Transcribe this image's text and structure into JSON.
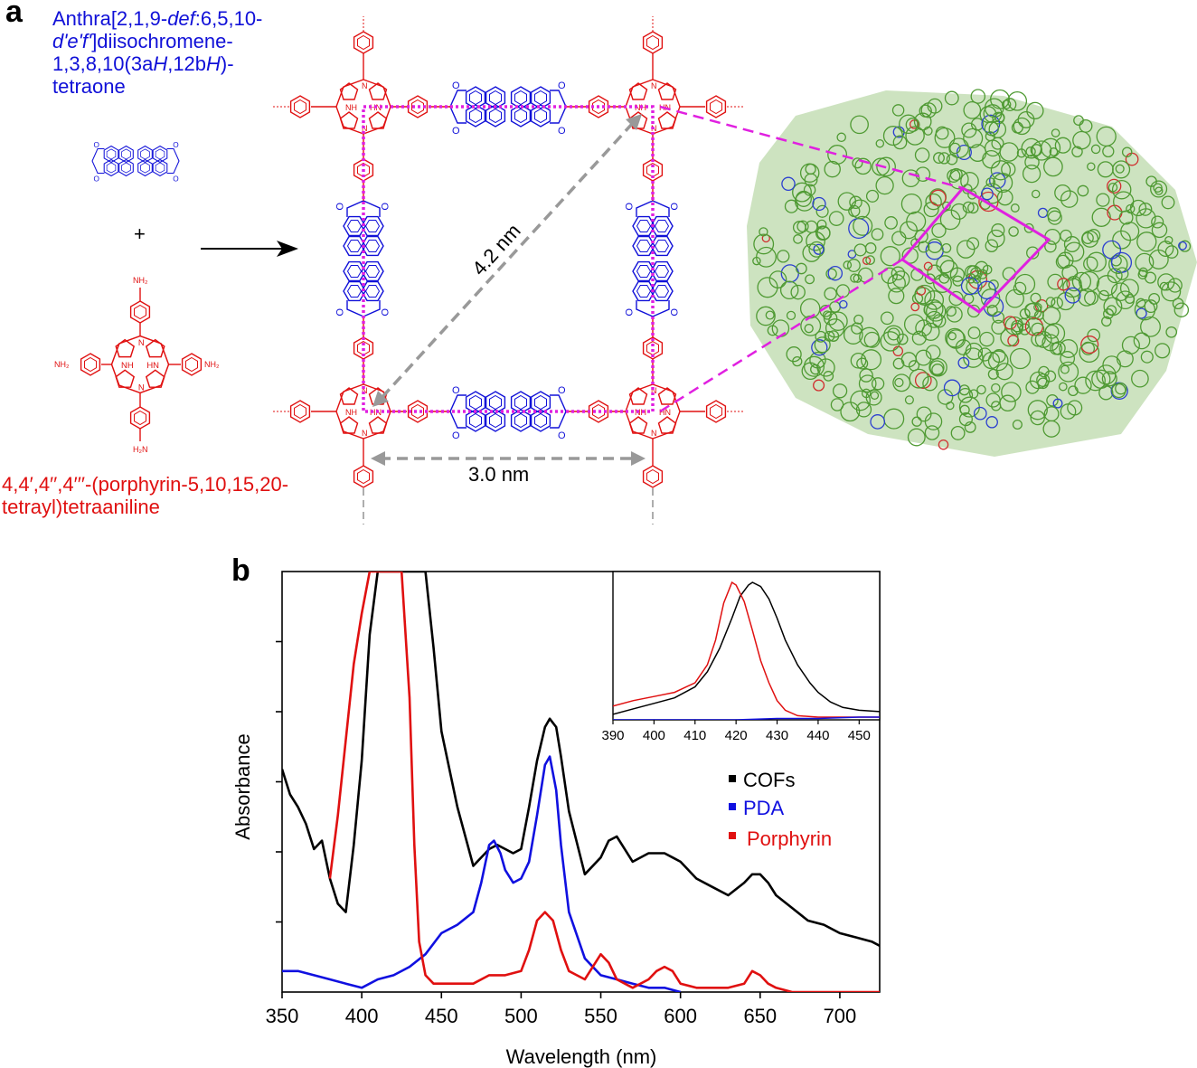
{
  "panel_a": {
    "letter": "a",
    "pda_name": {
      "line1_pre": "Anthra[2,1,9-",
      "line1_italic": "def",
      "line1_post": ":6,5,10-",
      "line2_italic": "d'e'f'",
      "line2_post": "]diisochromene-",
      "line3_pre": "1,3,8,10(3a",
      "line3_it1": "H",
      "line3_mid": ",12b",
      "line3_it2": "H",
      "line3_post": ")-",
      "line4": "tetraone"
    },
    "plus": "+",
    "porphyrin_name": {
      "line1": "4,4′,4′′,4′′′-(porphyrin-5,10,15,20-",
      "line2": "tetrayl)tetraaniline"
    },
    "atom_labels": {
      "nh2": "NH₂",
      "h2n": "H₂N",
      "nh": "NH",
      "hn": "HN",
      "n": "N",
      "o": "O"
    },
    "diagonal_label": "4.2 nm",
    "side_label": "3.0 nm"
  },
  "panel_b": {
    "letter": "b",
    "legend": [
      {
        "label": "COFs",
        "color": "#000000"
      },
      {
        "label": "PDA",
        "color": "#1010e0"
      },
      {
        "label": "Porphyrin",
        "color": "#e01010"
      }
    ]
  },
  "chart_data": [
    {
      "type": "line",
      "xlabel": "Wavelength (nm)",
      "ylabel": "Absorbance",
      "xlim": [
        350,
        725
      ],
      "xticks": [
        "350",
        "400",
        "450",
        "500",
        "550",
        "600",
        "650",
        "700"
      ],
      "legend_position": "right",
      "series": [
        {
          "name": "COFs",
          "color": "#000000",
          "x": [
            350,
            355,
            360,
            365,
            370,
            375,
            380,
            385,
            390,
            395,
            400,
            405,
            410,
            420,
            430,
            440,
            445,
            450,
            460,
            470,
            480,
            485,
            490,
            495,
            500,
            505,
            510,
            515,
            518,
            522,
            525,
            530,
            540,
            550,
            555,
            560,
            565,
            570,
            580,
            590,
            595,
            600,
            610,
            620,
            630,
            640,
            645,
            650,
            655,
            660,
            670,
            680,
            690,
            700,
            710,
            720,
            725
          ],
          "y": [
            0.53,
            0.47,
            0.44,
            0.4,
            0.34,
            0.36,
            0.27,
            0.21,
            0.19,
            0.35,
            0.55,
            0.85,
            1.0,
            1.0,
            1.0,
            1.0,
            0.82,
            0.62,
            0.44,
            0.3,
            0.34,
            0.35,
            0.34,
            0.33,
            0.34,
            0.44,
            0.55,
            0.63,
            0.65,
            0.63,
            0.56,
            0.43,
            0.28,
            0.32,
            0.36,
            0.37,
            0.34,
            0.31,
            0.33,
            0.33,
            0.32,
            0.31,
            0.27,
            0.25,
            0.23,
            0.26,
            0.28,
            0.28,
            0.26,
            0.23,
            0.2,
            0.17,
            0.16,
            0.14,
            0.13,
            0.12,
            0.11
          ]
        },
        {
          "name": "PDA",
          "color": "#1010e0",
          "x": [
            350,
            360,
            370,
            380,
            390,
            400,
            410,
            420,
            430,
            440,
            450,
            460,
            470,
            475,
            480,
            483,
            487,
            490,
            495,
            500,
            505,
            510,
            515,
            518,
            522,
            525,
            530,
            540,
            550,
            560,
            570,
            580,
            590,
            600
          ],
          "y": [
            0.05,
            0.05,
            0.04,
            0.03,
            0.02,
            0.01,
            0.03,
            0.04,
            0.06,
            0.09,
            0.14,
            0.16,
            0.19,
            0.26,
            0.35,
            0.36,
            0.33,
            0.29,
            0.26,
            0.27,
            0.31,
            0.42,
            0.54,
            0.56,
            0.48,
            0.35,
            0.19,
            0.08,
            0.04,
            0.03,
            0.02,
            0.01,
            0.01,
            0.0
          ]
        },
        {
          "name": "Porphyrin",
          "color": "#e01010",
          "x": [
            380,
            385,
            390,
            395,
            400,
            405,
            410,
            420,
            425,
            430,
            433,
            436,
            440,
            445,
            450,
            460,
            470,
            480,
            490,
            500,
            505,
            510,
            515,
            520,
            525,
            530,
            540,
            545,
            550,
            555,
            560,
            570,
            580,
            585,
            590,
            595,
            600,
            610,
            620,
            630,
            640,
            645,
            650,
            655,
            660,
            670,
            680,
            690,
            700,
            710,
            720,
            725
          ],
          "y": [
            0.27,
            0.42,
            0.6,
            0.78,
            0.9,
            1.0,
            1.0,
            1.0,
            1.0,
            0.7,
            0.35,
            0.12,
            0.04,
            0.02,
            0.02,
            0.02,
            0.02,
            0.04,
            0.04,
            0.05,
            0.1,
            0.17,
            0.19,
            0.17,
            0.1,
            0.05,
            0.03,
            0.06,
            0.09,
            0.07,
            0.03,
            0.01,
            0.03,
            0.05,
            0.06,
            0.05,
            0.02,
            0.01,
            0.01,
            0.01,
            0.02,
            0.05,
            0.04,
            0.02,
            0.01,
            0.0,
            0.0,
            0.0,
            0.0,
            0.0,
            0.0,
            0.0
          ]
        }
      ]
    },
    {
      "type": "line",
      "inset": true,
      "xlim": [
        390,
        455
      ],
      "xticks": [
        "390",
        "400",
        "410",
        "420",
        "430",
        "440",
        "450"
      ],
      "series": [
        {
          "name": "COFs",
          "color": "#000000",
          "x": [
            390,
            395,
            400,
            405,
            410,
            413,
            416,
            419,
            421,
            423,
            424,
            426,
            428,
            430,
            432,
            435,
            438,
            440,
            443,
            446,
            450,
            455
          ],
          "y": [
            0.04,
            0.08,
            0.12,
            0.16,
            0.24,
            0.35,
            0.52,
            0.74,
            0.9,
            0.98,
            1.0,
            0.97,
            0.88,
            0.74,
            0.58,
            0.4,
            0.27,
            0.2,
            0.13,
            0.09,
            0.07,
            0.06
          ]
        },
        {
          "name": "Porphyrin",
          "color": "#e01010",
          "x": [
            390,
            395,
            400,
            405,
            410,
            413,
            415,
            417,
            419,
            420,
            422,
            424,
            426,
            428,
            430,
            432,
            435,
            440,
            445,
            450,
            455
          ],
          "y": [
            0.1,
            0.14,
            0.17,
            0.2,
            0.27,
            0.4,
            0.58,
            0.85,
            1.0,
            0.98,
            0.86,
            0.65,
            0.43,
            0.27,
            0.14,
            0.07,
            0.03,
            0.02,
            0.02,
            0.02,
            0.02
          ]
        },
        {
          "name": "PDA",
          "color": "#1010e0",
          "x": [
            390,
            400,
            410,
            420,
            430,
            440,
            450,
            455
          ],
          "y": [
            0.0,
            0.0,
            0.0,
            0.0,
            0.01,
            0.01,
            0.02,
            0.02
          ]
        }
      ]
    }
  ]
}
